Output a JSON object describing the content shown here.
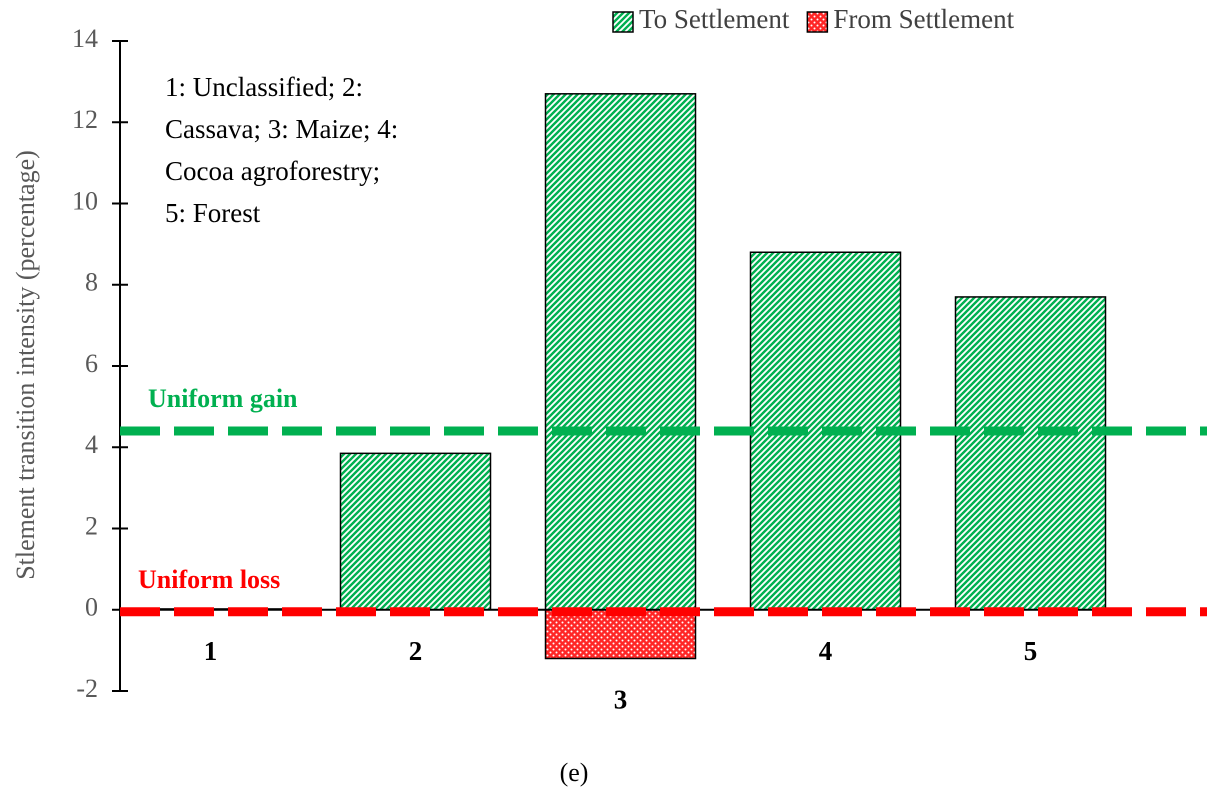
{
  "chart_data": {
    "type": "bar",
    "y_label": "Stlement transition intensity (percentage)",
    "caption": "(e)",
    "annotation_lines": [
      "1: Unclassified; 2:",
      "Cassava; 3: Maize; 4:",
      "Cocoa agroforestry;",
      "5: Forest"
    ],
    "categories": [
      "1",
      "2",
      "3",
      "4",
      "5"
    ],
    "series": [
      {
        "name": "To Settlement",
        "color": "#00b050",
        "values": [
          0.02,
          3.85,
          12.7,
          8.8,
          7.7
        ]
      },
      {
        "name": "From Settlement",
        "color": "#ff0000",
        "values": [
          0,
          0,
          -1.2,
          0,
          0
        ]
      }
    ],
    "reference_lines": [
      {
        "label": "Uniform gain",
        "value": 4.4,
        "color": "#00b050"
      },
      {
        "label": "Uniform loss",
        "value": -0.05,
        "color": "#ff0000"
      }
    ],
    "ylim": [
      -2,
      14
    ],
    "yticks": [
      -2,
      0,
      2,
      4,
      6,
      8,
      10,
      12,
      14
    ],
    "legend": "top-right"
  }
}
